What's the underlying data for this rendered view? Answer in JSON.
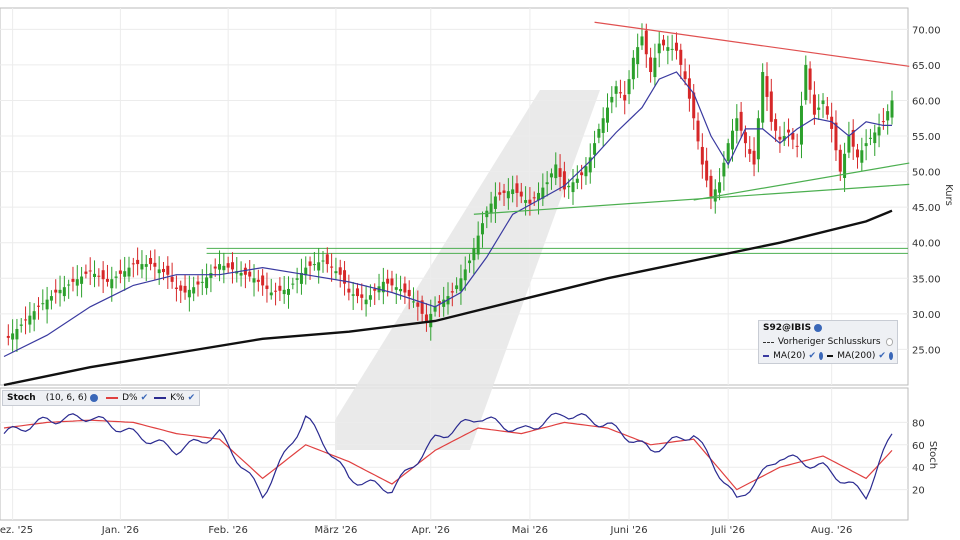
{
  "chart_data": [
    {
      "type": "candlestick",
      "symbol": "S92@IBIS",
      "ylabel": "Kurs",
      "ylim": [
        20,
        73
      ],
      "yticks": [
        "25.00",
        "30.00",
        "35.00",
        "40.00",
        "45.00",
        "50.00",
        "55.00",
        "60.00",
        "65.00",
        "70.00"
      ],
      "x_months": [
        "Dez. '25",
        "Jan. '26",
        "Feb. '26",
        "März '26",
        "Apr. '26",
        "Mai '26",
        "Juni '26",
        "Juli '26",
        "Aug. '26"
      ],
      "legend": {
        "title": "S92@IBIS",
        "prev_close": "Vorheriger Schlusskurs",
        "ma20": "MA(20)",
        "ma200": "MA(200)"
      },
      "colors": {
        "up": "#2ca02c",
        "down": "#d62728",
        "ma20": "#3a3aa0",
        "ma200": "#111111",
        "trend_resistance": "#e05050",
        "trend_support": "#4caf50",
        "horizontal": "#4caf50"
      },
      "close_path": [
        [
          0,
          26.0
        ],
        [
          4,
          28.5
        ],
        [
          8,
          31.0
        ],
        [
          12,
          33.0
        ],
        [
          16,
          34.5
        ],
        [
          20,
          36.0
        ],
        [
          24,
          34.5
        ],
        [
          28,
          36.0
        ],
        [
          30,
          37.0
        ],
        [
          34,
          37.0
        ],
        [
          38,
          35.5
        ],
        [
          40,
          33.5
        ],
        [
          42,
          33.0
        ],
        [
          46,
          34.5
        ],
        [
          50,
          37.0
        ],
        [
          54,
          36.0
        ],
        [
          58,
          35.0
        ],
        [
          62,
          33.0
        ],
        [
          66,
          33.5
        ],
        [
          70,
          36.5
        ],
        [
          74,
          37.5
        ],
        [
          78,
          35.5
        ],
        [
          80,
          33.0
        ],
        [
          84,
          32.0
        ],
        [
          88,
          34.5
        ],
        [
          92,
          33.5
        ],
        [
          94,
          32.5
        ],
        [
          96,
          31.0
        ],
        [
          98,
          29.0
        ],
        [
          100,
          31.0
        ],
        [
          102,
          32.0
        ],
        [
          104,
          33.0
        ],
        [
          106,
          35.0
        ],
        [
          108,
          37.5
        ],
        [
          110,
          41.0
        ],
        [
          112,
          44.5
        ],
        [
          114,
          46.5
        ],
        [
          118,
          47.5
        ],
        [
          122,
          45.5
        ],
        [
          126,
          48.5
        ],
        [
          128,
          51.0
        ],
        [
          130,
          47.5
        ],
        [
          134,
          49.5
        ],
        [
          136,
          52.0
        ],
        [
          138,
          56.0
        ],
        [
          140,
          59.0
        ],
        [
          142,
          62.0
        ],
        [
          144,
          60.0
        ],
        [
          146,
          66.0
        ],
        [
          148,
          69.0
        ],
        [
          150,
          64.0
        ],
        [
          152,
          68.0
        ],
        [
          156,
          67.0
        ],
        [
          158,
          63.0
        ],
        [
          160,
          57.5
        ],
        [
          162,
          51.0
        ],
        [
          164,
          46.5
        ],
        [
          166,
          48.5
        ],
        [
          168,
          54.0
        ],
        [
          170,
          57.5
        ],
        [
          172,
          54.0
        ],
        [
          174,
          51.0
        ],
        [
          176,
          64.0
        ],
        [
          178,
          57.0
        ],
        [
          180,
          54.5
        ],
        [
          182,
          55.5
        ],
        [
          184,
          53.5
        ],
        [
          186,
          65.0
        ],
        [
          188,
          58.0
        ],
        [
          190,
          60.0
        ],
        [
          192,
          56.0
        ],
        [
          194,
          50.0
        ],
        [
          196,
          55.0
        ],
        [
          198,
          52.0
        ],
        [
          200,
          54.0
        ],
        [
          202,
          55.5
        ],
        [
          204,
          57.0
        ],
        [
          206,
          60.0
        ]
      ],
      "ma20_path": [
        [
          0,
          24.0
        ],
        [
          10,
          27.0
        ],
        [
          20,
          31.0
        ],
        [
          30,
          34.0
        ],
        [
          40,
          35.5
        ],
        [
          50,
          35.5
        ],
        [
          60,
          36.5
        ],
        [
          70,
          35.5
        ],
        [
          80,
          34.5
        ],
        [
          90,
          33.0
        ],
        [
          100,
          31.0
        ],
        [
          106,
          33.0
        ],
        [
          112,
          38.0
        ],
        [
          118,
          44.0
        ],
        [
          124,
          46.0
        ],
        [
          130,
          48.0
        ],
        [
          136,
          51.5
        ],
        [
          142,
          55.5
        ],
        [
          148,
          59.0
        ],
        [
          152,
          63.0
        ],
        [
          156,
          64.0
        ],
        [
          160,
          61.0
        ],
        [
          164,
          55.0
        ],
        [
          168,
          51.0
        ],
        [
          172,
          56.0
        ],
        [
          176,
          56.0
        ],
        [
          180,
          54.0
        ],
        [
          184,
          56.0
        ],
        [
          188,
          57.5
        ],
        [
          192,
          57.0
        ],
        [
          196,
          55.0
        ],
        [
          200,
          57.0
        ],
        [
          204,
          56.5
        ],
        [
          206,
          56.5
        ]
      ],
      "ma200_path": [
        [
          0,
          20.0
        ],
        [
          20,
          22.5
        ],
        [
          40,
          24.5
        ],
        [
          60,
          26.5
        ],
        [
          80,
          27.5
        ],
        [
          100,
          29.0
        ],
        [
          120,
          32.0
        ],
        [
          140,
          35.0
        ],
        [
          160,
          37.5
        ],
        [
          180,
          40.0
        ],
        [
          200,
          43.0
        ],
        [
          206,
          44.5
        ]
      ],
      "resistance_line": [
        [
          137,
          71.0
        ],
        [
          210,
          64.8
        ]
      ],
      "support_lines": [
        [
          [
            109,
            44.0
          ],
          [
            210,
            48.2
          ]
        ],
        [
          [
            160,
            46.0
          ],
          [
            210,
            51.2
          ]
        ]
      ],
      "horizontal_lines": [
        39.2,
        38.5
      ]
    },
    {
      "type": "line",
      "title": "Stoch",
      "params": "(10, 6, 6)",
      "ylabel": "Stoch",
      "ylim": [
        0,
        100
      ],
      "yticks": [
        "20",
        "40",
        "60",
        "80"
      ],
      "series": [
        {
          "name": "D%",
          "color": "#e04040",
          "values": [
            [
              0,
              75
            ],
            [
              10,
              80
            ],
            [
              20,
              82
            ],
            [
              30,
              80
            ],
            [
              40,
              70
            ],
            [
              50,
              65
            ],
            [
              60,
              30
            ],
            [
              70,
              60
            ],
            [
              80,
              45
            ],
            [
              90,
              25
            ],
            [
              100,
              55
            ],
            [
              110,
              75
            ],
            [
              120,
              70
            ],
            [
              130,
              80
            ],
            [
              140,
              75
            ],
            [
              150,
              60
            ],
            [
              160,
              65
            ],
            [
              170,
              20
            ],
            [
              180,
              40
            ],
            [
              190,
              50
            ],
            [
              200,
              30
            ],
            [
              206,
              55
            ]
          ]
        },
        {
          "name": "K%",
          "color": "#2a2a90",
          "values": [
            [
              0,
              70
            ],
            [
              10,
              82
            ],
            [
              20,
              85
            ],
            [
              30,
              70
            ],
            [
              40,
              55
            ],
            [
              50,
              70
            ],
            [
              60,
              15
            ],
            [
              70,
              85
            ],
            [
              80,
              30
            ],
            [
              90,
              20
            ],
            [
              100,
              65
            ],
            [
              110,
              85
            ],
            [
              120,
              72
            ],
            [
              130,
              88
            ],
            [
              140,
              78
            ],
            [
              150,
              55
            ],
            [
              160,
              70
            ],
            [
              170,
              10
            ],
            [
              180,
              50
            ],
            [
              190,
              40
            ],
            [
              200,
              15
            ],
            [
              206,
              70
            ]
          ]
        }
      ]
    }
  ],
  "stoch_legend": {
    "title": "Stoch",
    "params": "(10, 6, 6)",
    "d_label": "D%",
    "k_label": "K%"
  }
}
